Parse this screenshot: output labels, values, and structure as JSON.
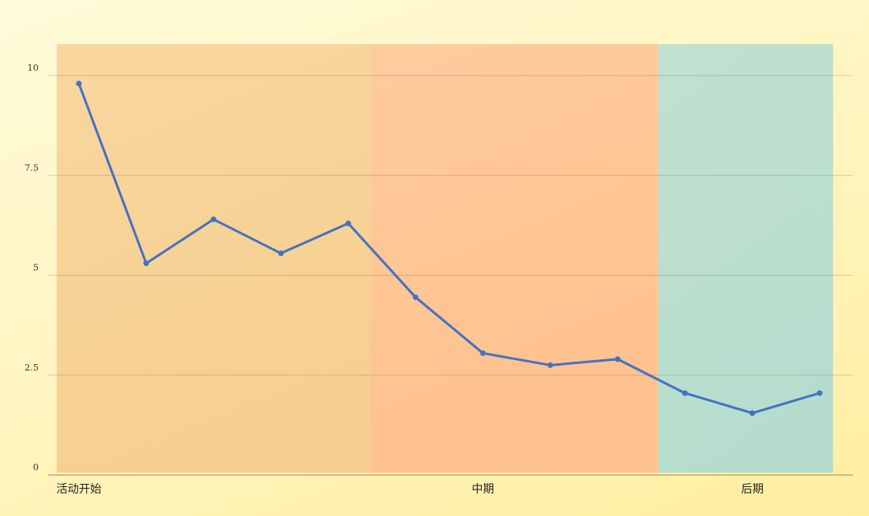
{
  "chart_data": {
    "type": "line",
    "title": "",
    "xlabel": "",
    "ylabel": "",
    "ylim": [
      0,
      10.8
    ],
    "yticks": [
      0,
      2.5,
      5,
      7.5,
      10
    ],
    "ytick_labels": [
      "0",
      "2.5",
      "5",
      "7.5",
      "10"
    ],
    "grid": true,
    "legend": "none",
    "x": [
      1,
      2,
      3,
      4,
      5,
      6,
      7,
      8,
      9,
      10,
      11,
      12
    ],
    "series": [
      {
        "values": [
          9.8,
          5.3,
          6.4,
          5.55,
          6.3,
          4.45,
          3.05,
          2.75,
          2.9,
          2.05,
          1.55,
          2.05
        ],
        "color": "#4472c4"
      }
    ],
    "phases": [
      {
        "label": "活动开始",
        "label_at": 1,
        "start": 0.67,
        "end": 5.33,
        "color": "#f5c98a"
      },
      {
        "label": "中期",
        "label_at": 7,
        "start": 5.33,
        "end": 9.6,
        "color": "#ffb98a"
      },
      {
        "label": "后期",
        "label_at": 11,
        "start": 9.6,
        "end": 12.2,
        "color": "#a9d9d4"
      }
    ]
  }
}
